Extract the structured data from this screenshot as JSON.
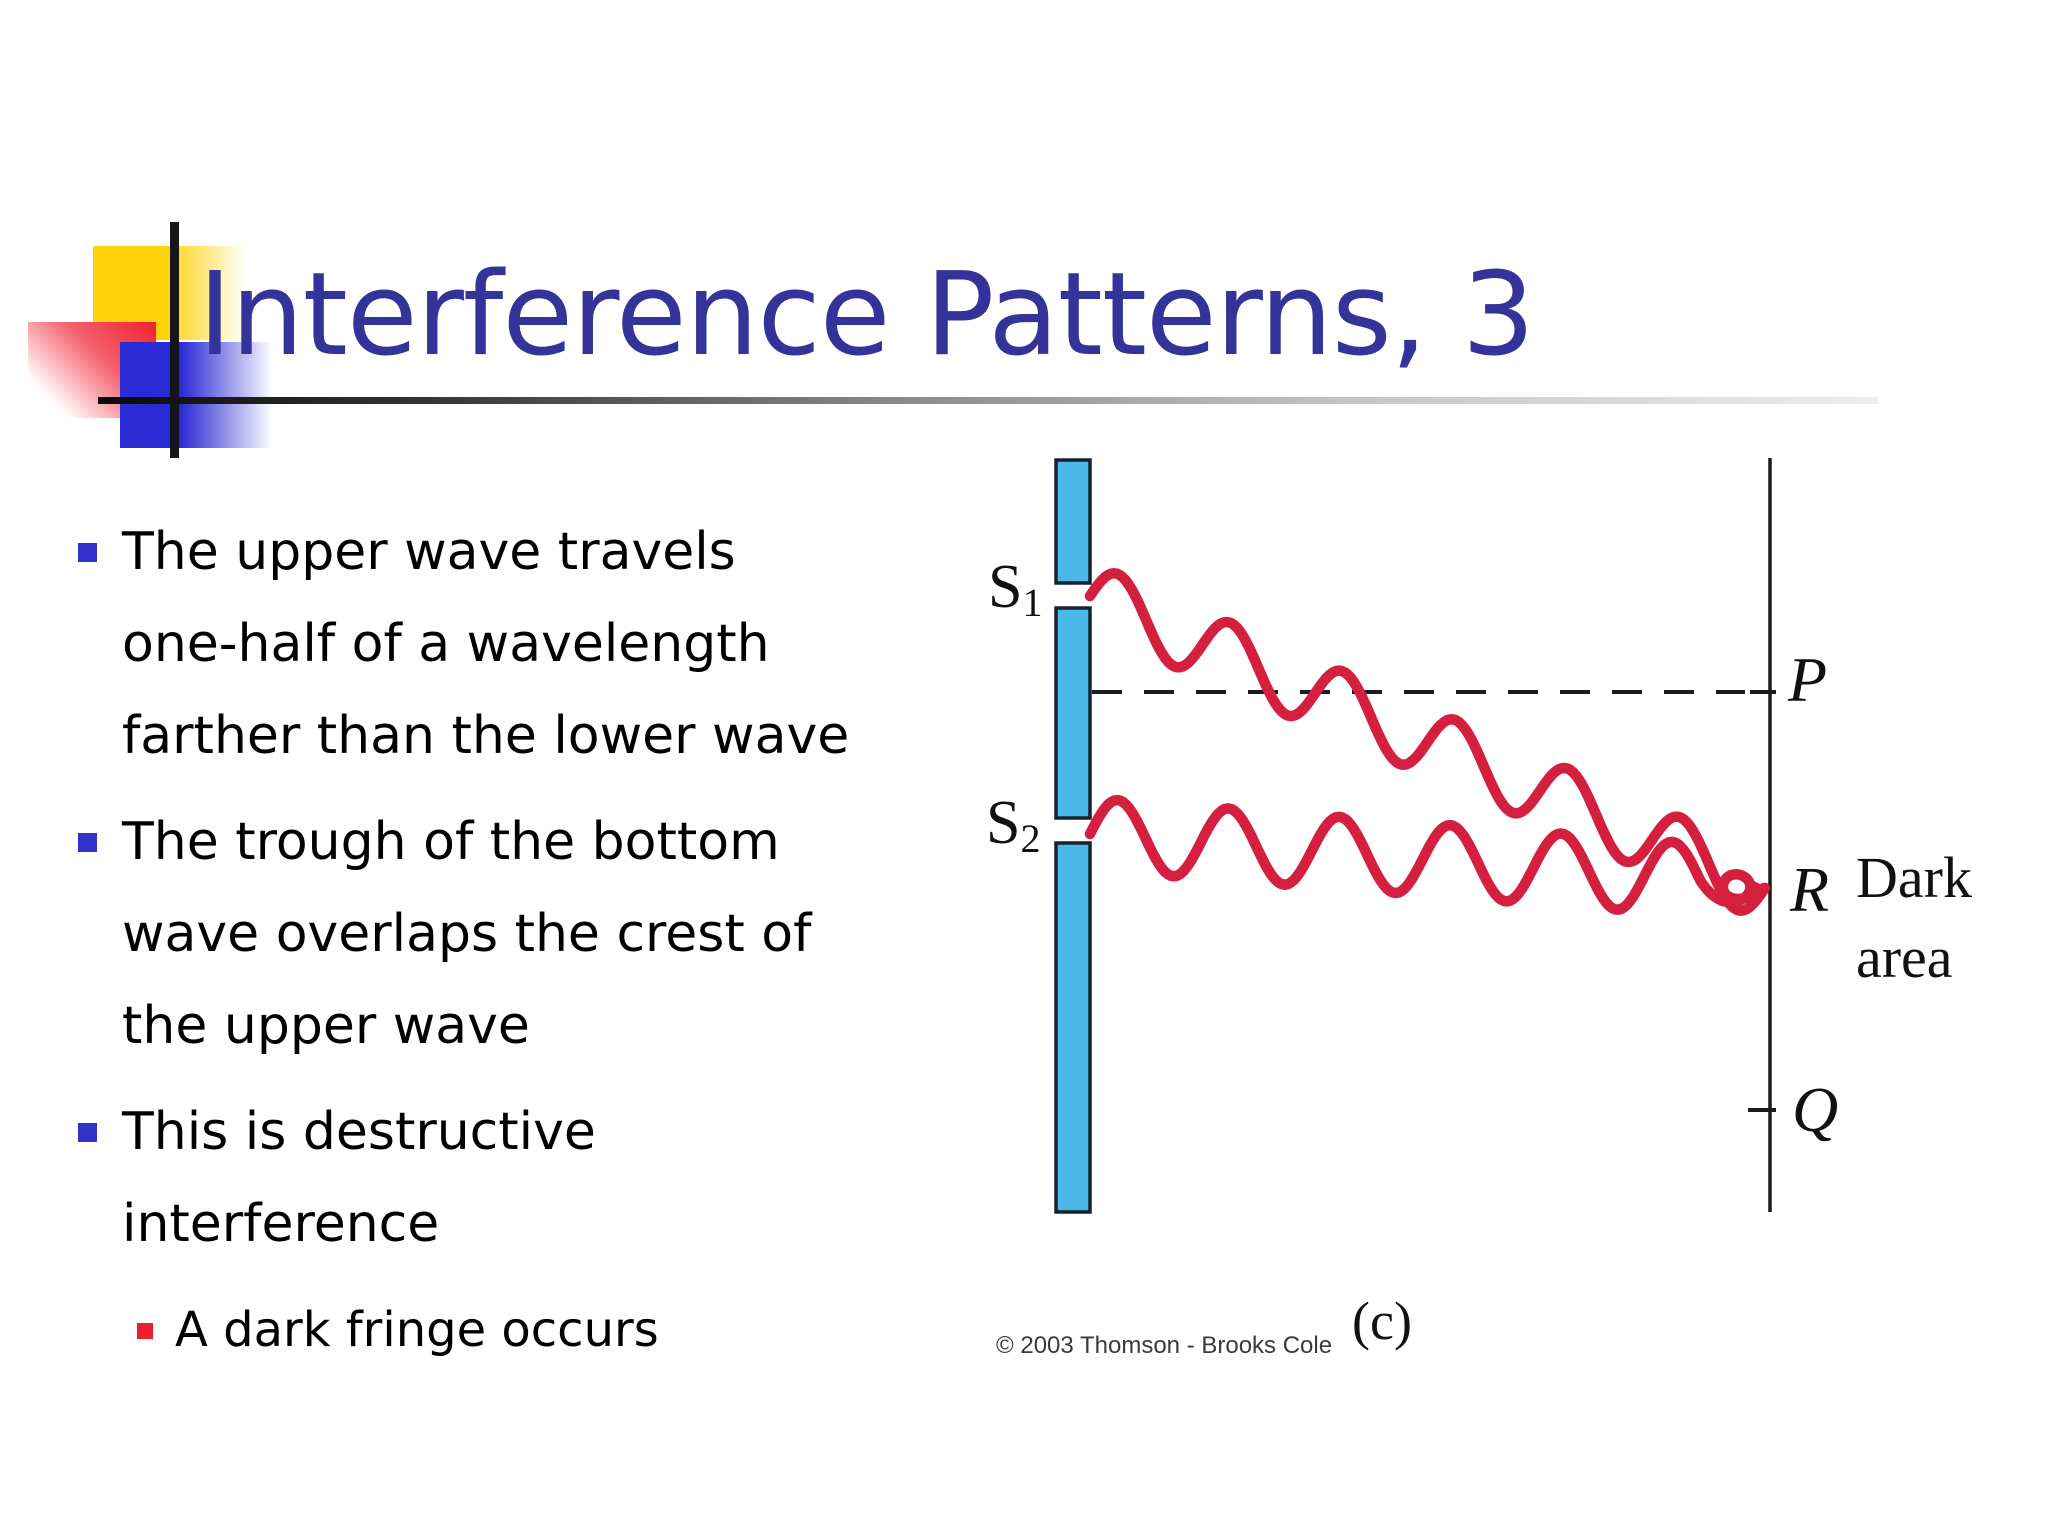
{
  "slide": {
    "title": "Interference Patterns, 3",
    "bullets": [
      {
        "lines": [
          "The upper wave travels",
          "one-half of a wavelength",
          "farther than the lower wave"
        ]
      },
      {
        "lines": [
          "The trough of the bottom",
          "wave overlaps the crest of",
          "the upper wave"
        ]
      },
      {
        "lines": [
          "This is destructive",
          "interference"
        ]
      },
      {
        "lines": [
          "A dark fringe occurs"
        ]
      }
    ]
  },
  "diagram": {
    "slit1_label": "S",
    "slit1_sub": "1",
    "slit2_label": "S",
    "slit2_sub": "2",
    "point_p": "P",
    "point_r": "R",
    "point_q": "Q",
    "dark_area_line1": "Dark",
    "dark_area_line2": "area",
    "panel_label": "(c)",
    "credit": "© 2003 Thomson - Brooks Cole"
  },
  "colors": {
    "title": "#333399",
    "body_text": "#000000",
    "bullet_square": "#3333cc",
    "sub_bullet_square": "#ee1c2e",
    "wave": "#d41f3f",
    "barrier_fill": "#4ab7e8",
    "barrier_stroke": "#16222e",
    "diagram_line": "#1c1c1c",
    "deco_yellow": "#ffd10a",
    "deco_red": "#ee2231",
    "deco_blue": "#2b2bd5"
  }
}
